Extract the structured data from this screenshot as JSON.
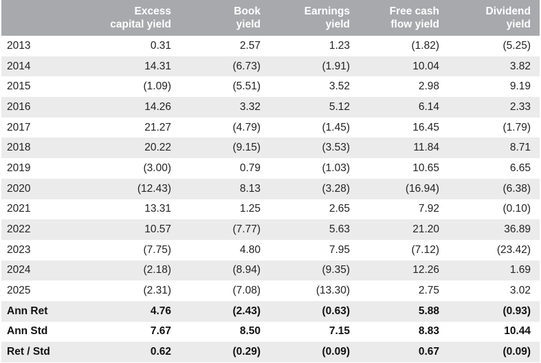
{
  "headers": [
    "",
    "Excess\ncapital yield",
    "Book\nyield",
    "Earnings\nyield",
    "Free cash\nflow yield",
    "Dividend\nyield"
  ],
  "rows": [
    [
      "2013",
      "0.31",
      "2.57",
      "1.23",
      "(1.82)",
      "(5.25)"
    ],
    [
      "2014",
      "14.31",
      "(6.73)",
      "(1.91)",
      "10.04",
      "3.82"
    ],
    [
      "2015",
      "(1.09)",
      "(5.51)",
      "3.52",
      "2.98",
      "9.19"
    ],
    [
      "2016",
      "14.26",
      "3.32",
      "5.12",
      "6.14",
      "2.33"
    ],
    [
      "2017",
      "21.27",
      "(4.79)",
      "(1.45)",
      "16.45",
      "(1.79)"
    ],
    [
      "2018",
      "20.22",
      "(9.15)",
      "(3.53)",
      "11.84",
      "8.71"
    ],
    [
      "2019",
      "(3.00)",
      "0.79",
      "(1.03)",
      "10.65",
      "6.65"
    ],
    [
      "2020",
      "(12.43)",
      "8.13",
      "(3.28)",
      "(16.94)",
      "(6.38)"
    ],
    [
      "2021",
      "13.31",
      "1.25",
      "2.65",
      "7.92",
      "(0.10)"
    ],
    [
      "2022",
      "10.57",
      "(7.77)",
      "5.63",
      "21.20",
      "36.89"
    ],
    [
      "2023",
      "(7.75)",
      "4.80",
      "7.95",
      "(7.12)",
      "(23.42)"
    ],
    [
      "2024",
      "(2.18)",
      "(8.94)",
      "(9.35)",
      "12.26",
      "1.69"
    ],
    [
      "2025",
      "(2.31)",
      "(7.08)",
      "(13.30)",
      "2.75",
      "3.02"
    ]
  ],
  "summary": [
    [
      "Ann Ret",
      "4.76",
      "(2.43)",
      "(0.63)",
      "5.88",
      "(0.93)"
    ],
    [
      "Ann Std",
      "7.67",
      "8.50",
      "7.15",
      "8.83",
      "10.44"
    ],
    [
      "Ret / Std",
      "0.62",
      "(0.29)",
      "(0.09)",
      "0.67",
      "(0.09)"
    ]
  ],
  "colors": {
    "header_bg": "#a7a9ac",
    "header_text": "#ffffff",
    "row_shade": "#ebebeb"
  }
}
